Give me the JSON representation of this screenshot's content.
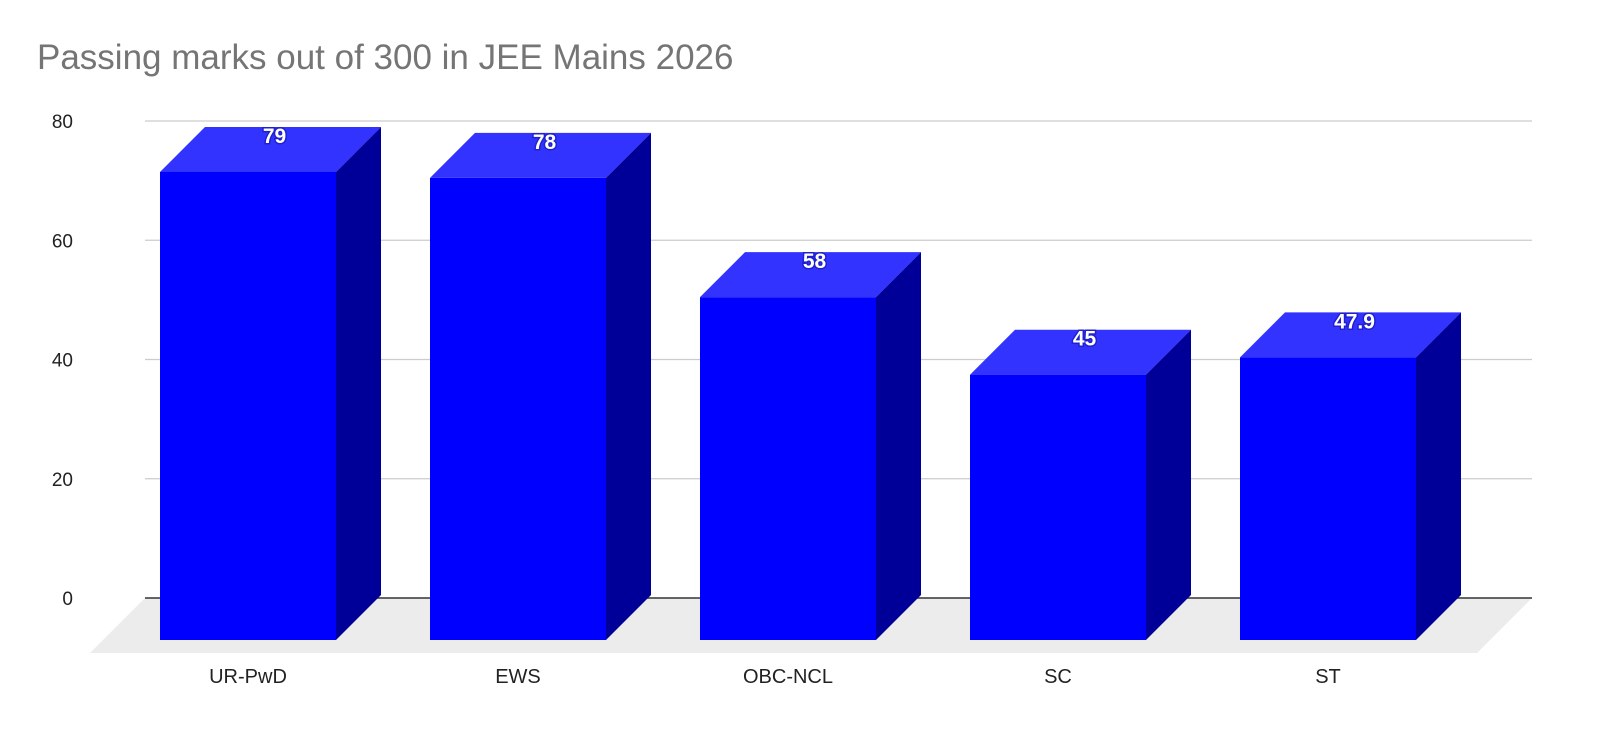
{
  "chart_data": {
    "type": "bar",
    "style": "3d-column",
    "title": "Passing marks out of 300 in JEE Mains 2026",
    "categories": [
      "UR-PwD",
      "EWS",
      "OBC-NCL",
      "SC",
      "ST"
    ],
    "values": [
      79,
      78,
      58,
      45,
      47.9
    ],
    "data_labels": [
      "79",
      "78",
      "58",
      "45",
      "47.9"
    ],
    "xlabel": "",
    "ylabel": "",
    "ylim": [
      0,
      80
    ],
    "yticks": [
      0,
      20,
      40,
      60,
      80
    ],
    "grid": true,
    "legend": "none",
    "colors": {
      "bar_front": "#0000ff",
      "bar_top": "#3333ff",
      "bar_side": "#000099",
      "floor": "#ececec",
      "grid": "#cccccc",
      "title": "#757575"
    }
  }
}
